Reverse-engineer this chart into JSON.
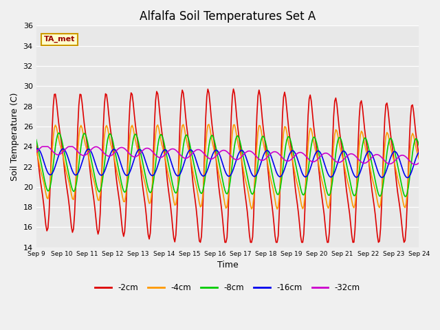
{
  "title": "Alfalfa Soil Temperatures Set A",
  "xlabel": "Time",
  "ylabel": "Soil Temperature (C)",
  "ylim": [
    14,
    36
  ],
  "xlim": [
    0,
    15
  ],
  "series": {
    "-2cm": {
      "color": "#dd0000",
      "lw": 1.2
    },
    "-4cm": {
      "color": "#ff9900",
      "lw": 1.2
    },
    "-8cm": {
      "color": "#00cc00",
      "lw": 1.2
    },
    "-16cm": {
      "color": "#0000ee",
      "lw": 1.2
    },
    "-32cm": {
      "color": "#cc00cc",
      "lw": 1.2
    }
  },
  "yticks": [
    14,
    16,
    18,
    20,
    22,
    24,
    26,
    28,
    30,
    32,
    34,
    36
  ],
  "xtick_labels": [
    "Sep 9",
    "Sep 10",
    "Sep 11",
    "Sep 12",
    "Sep 13",
    "Sep 14",
    "Sep 15",
    "Sep 16",
    "Sep 17",
    "Sep 18",
    "Sep 19",
    "Sep 20",
    "Sep 21",
    "Sep 22",
    "Sep 23",
    "Sep 24"
  ],
  "xtick_positions": [
    0,
    1,
    2,
    3,
    4,
    5,
    6,
    7,
    8,
    9,
    10,
    11,
    12,
    13,
    14,
    15
  ],
  "annotation_text": "TA_met",
  "annotation_bg": "#ffffcc",
  "annotation_border": "#cc9900"
}
